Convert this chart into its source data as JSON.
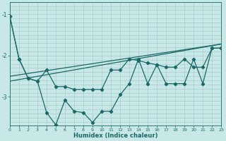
{
  "xlabel": "Humidex (Indice chaleur)",
  "bg_color": "#c8e8e8",
  "grid_color": "#a8cccc",
  "line_color": "#1a6868",
  "xlim": [
    0,
    23
  ],
  "ylim": [
    -3.7,
    -0.7
  ],
  "yticks": [
    -3,
    -2,
    -1
  ],
  "xticks": [
    0,
    1,
    2,
    3,
    4,
    5,
    6,
    7,
    8,
    9,
    10,
    11,
    12,
    13,
    14,
    15,
    16,
    17,
    18,
    19,
    20,
    21,
    22,
    23
  ],
  "series1_x": [
    0,
    1,
    2,
    3,
    4,
    5,
    6,
    7,
    8,
    9,
    10,
    11,
    12,
    13,
    14,
    15,
    16,
    17,
    18,
    19,
    20,
    21,
    22,
    23
  ],
  "series1_y": [
    -1.05,
    -2.08,
    -2.55,
    -2.62,
    -2.35,
    -2.75,
    -2.75,
    -2.82,
    -2.82,
    -2.82,
    -2.82,
    -2.35,
    -2.35,
    -2.08,
    -2.12,
    -2.18,
    -2.22,
    -2.28,
    -2.28,
    -2.08,
    -2.28,
    -2.28,
    -1.82,
    -1.82
  ],
  "series2_x": [
    0,
    1,
    2,
    3,
    4,
    5,
    6,
    7,
    8,
    9,
    10,
    11,
    12,
    13,
    14,
    15,
    16,
    17,
    18,
    19,
    20,
    21,
    22,
    23
  ],
  "series2_y": [
    -1.05,
    -2.08,
    -2.55,
    -2.62,
    -3.38,
    -3.68,
    -3.08,
    -3.35,
    -3.38,
    -3.62,
    -3.35,
    -3.35,
    -2.95,
    -2.68,
    -2.08,
    -2.68,
    -2.22,
    -2.68,
    -2.68,
    -2.68,
    -2.08,
    -2.68,
    -1.82,
    -1.82
  ],
  "trend1_x": [
    0,
    23
  ],
  "trend1_y": [
    -2.5,
    -1.72
  ],
  "trend2_x": [
    0,
    23
  ],
  "trend2_y": [
    -2.62,
    -1.72
  ]
}
